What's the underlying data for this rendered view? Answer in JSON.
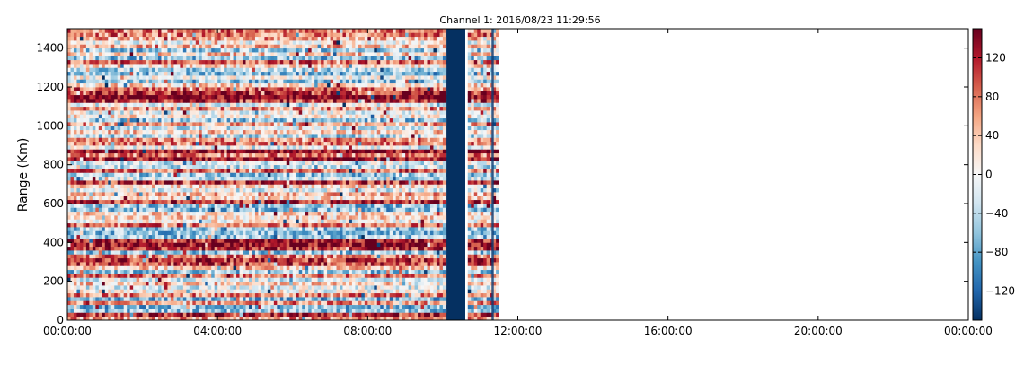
{
  "chart_data": {
    "type": "heatmap",
    "title": "Channel 1: 2016/08/23 11:29:56",
    "ylabel": "Range (Km)",
    "xlabel": "",
    "x_ticks": [
      "00:00:00",
      "04:00:00",
      "08:00:00",
      "12:00:00",
      "16:00:00",
      "20:00:00",
      "00:00:00"
    ],
    "x_range_hours": [
      0,
      24
    ],
    "data_extent_hours": [
      0,
      11.5
    ],
    "ylim": [
      0,
      1500
    ],
    "y_ticks": [
      0,
      200,
      400,
      600,
      800,
      1000,
      1200,
      1400
    ],
    "colorbar": {
      "colormap": "RdBu_r",
      "range": [
        -150,
        150
      ],
      "ticks": [
        -120,
        -80,
        -40,
        0,
        40,
        80,
        120
      ],
      "tick_labels": [
        "−120",
        "−80",
        "−40",
        "0",
        "40",
        "80",
        "120"
      ]
    },
    "dark_band": {
      "start_hours": 10.1,
      "end_hours": 10.6,
      "value": -150
    },
    "gap_column_hours": 11.3,
    "grid": false
  }
}
